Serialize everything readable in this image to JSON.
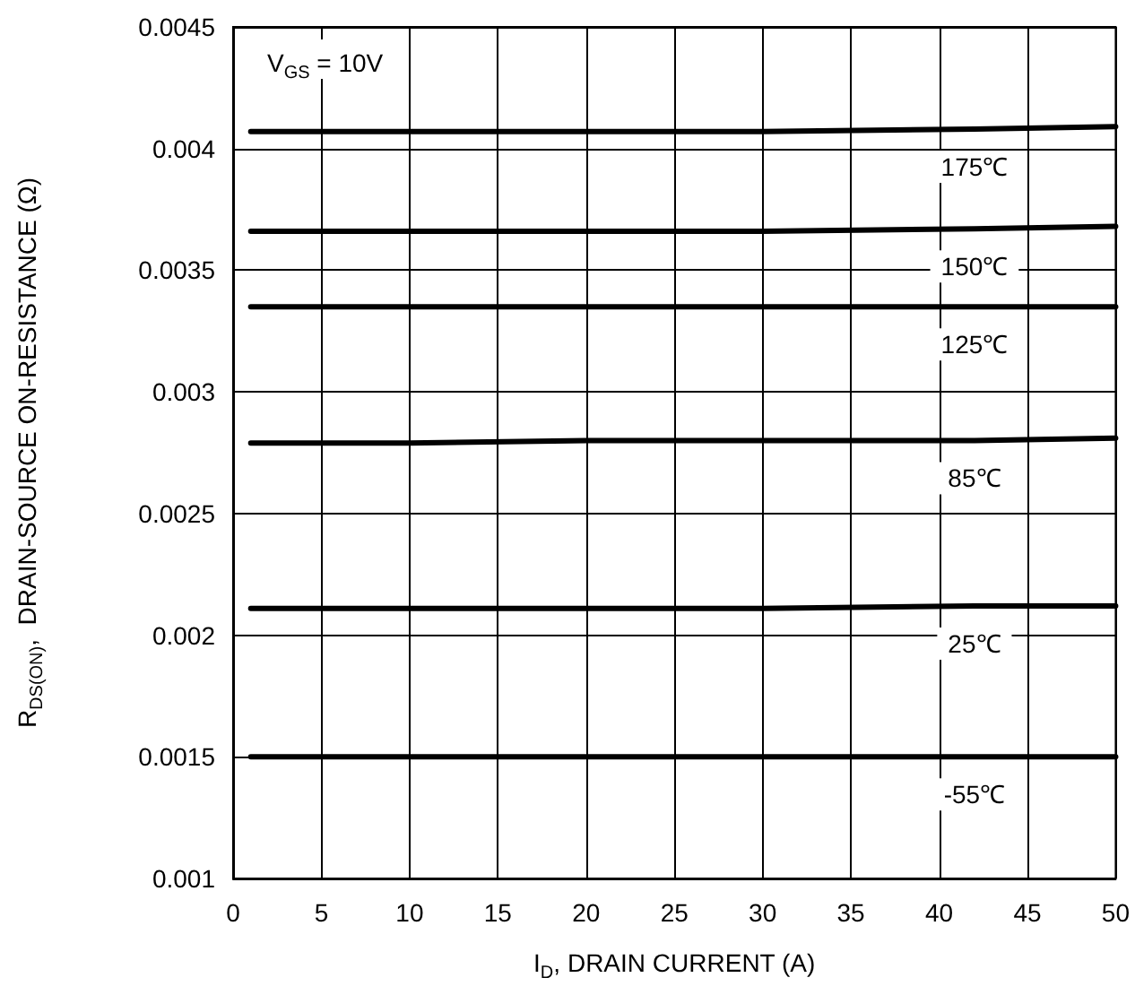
{
  "chart_data": {
    "type": "line",
    "xlabel": "I$_{D}$, DRAIN CURRENT (A)",
    "ylabel": "R$_{DS(ON)}$,  DRAIN-SOURCE ON-RESISTANCE (Ω)",
    "annotations": [
      "V$_{GS}$ = 10V"
    ],
    "x": [
      1,
      10,
      20,
      30,
      42,
      50
    ],
    "series": [
      {
        "name": "175℃",
        "color": "#000000",
        "values": [
          0.00407,
          0.00407,
          0.00407,
          0.00407,
          0.00408,
          0.00409
        ]
      },
      {
        "name": "150℃",
        "color": "#000000",
        "values": [
          0.00366,
          0.00366,
          0.00366,
          0.00366,
          0.00367,
          0.00368
        ]
      },
      {
        "name": "125℃",
        "color": "#000000",
        "values": [
          0.00335,
          0.00335,
          0.00335,
          0.00335,
          0.00335,
          0.00335
        ]
      },
      {
        "name": "85℃",
        "color": "#000000",
        "values": [
          0.00279,
          0.00279,
          0.0028,
          0.0028,
          0.0028,
          0.00281
        ]
      },
      {
        "name": "25℃",
        "color": "#000000",
        "values": [
          0.00211,
          0.00211,
          0.00211,
          0.00211,
          0.00212,
          0.00212
        ]
      },
      {
        "name": "-55℃",
        "color": "#000000",
        "values": [
          0.0015,
          0.0015,
          0.0015,
          0.0015,
          0.0015,
          0.0015
        ]
      }
    ],
    "xlim": [
      0,
      50
    ],
    "xticks": [
      0,
      5,
      10,
      15,
      20,
      25,
      30,
      35,
      40,
      45,
      50
    ],
    "ylim": [
      0.001,
      0.0045
    ],
    "yticks": [
      0.001,
      0.0015,
      0.002,
      0.0025,
      0.003,
      0.0035,
      0.004,
      0.0045
    ],
    "grid": true,
    "legend": false,
    "marker": "none",
    "line_style": "solid"
  }
}
